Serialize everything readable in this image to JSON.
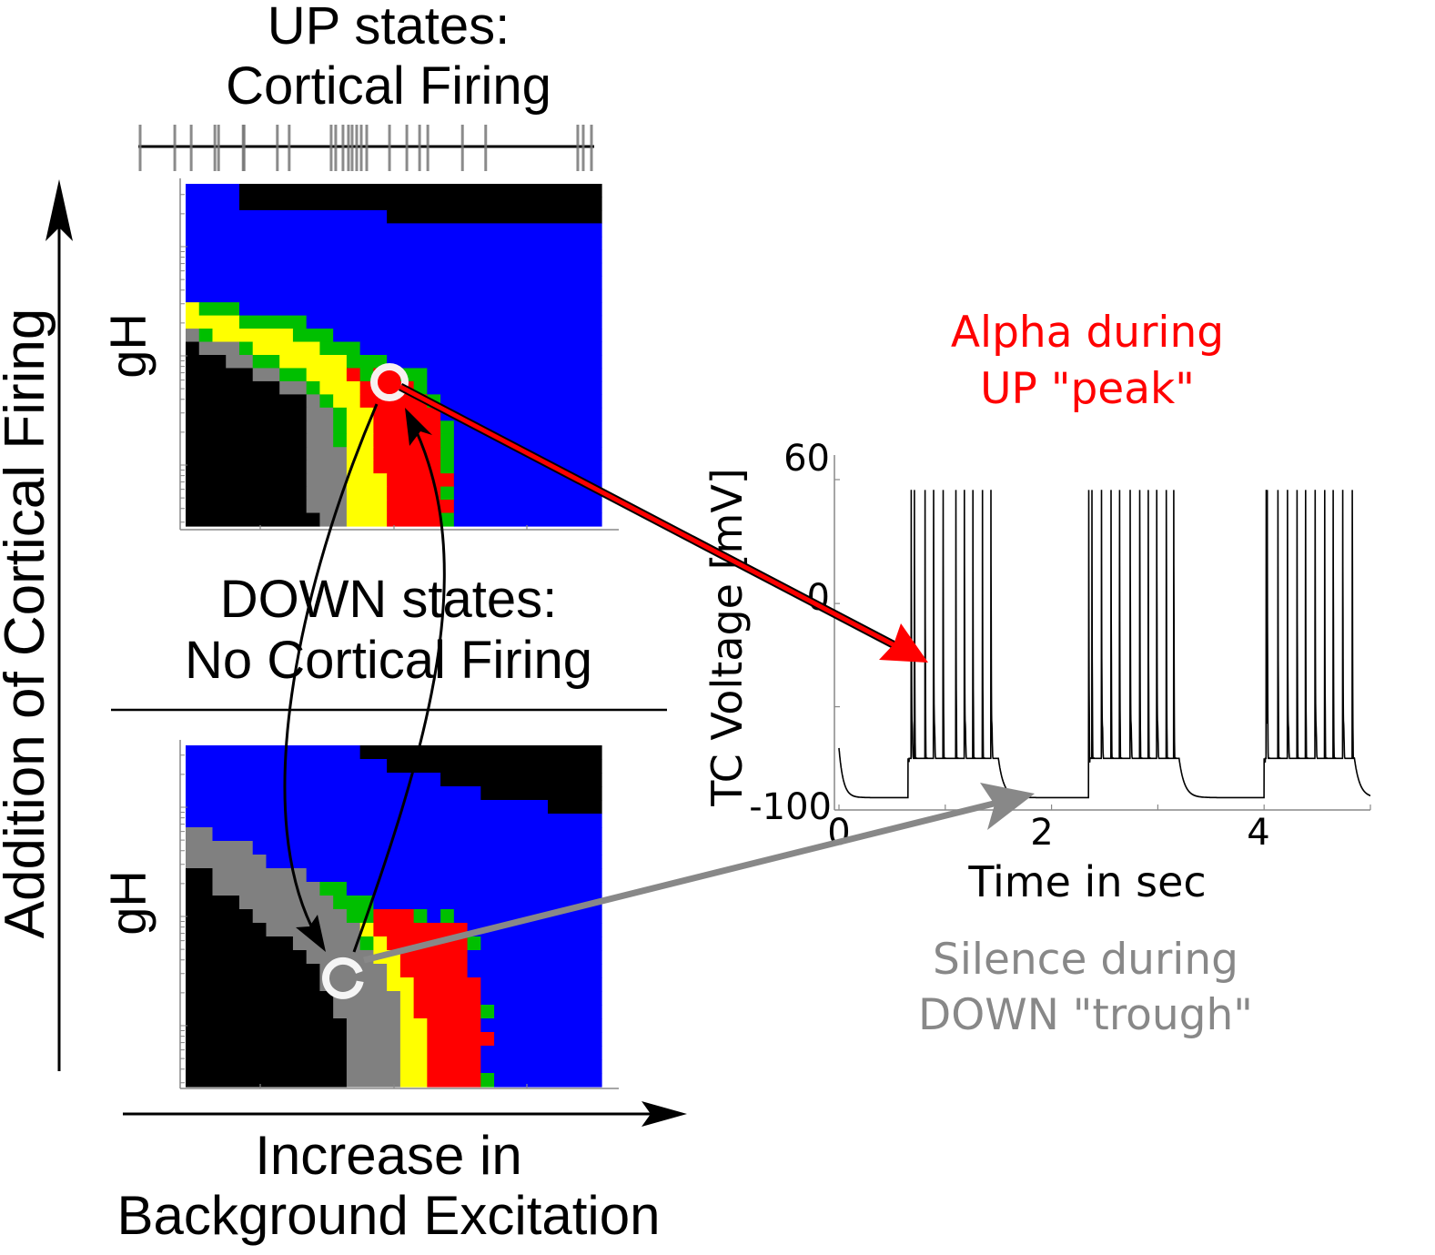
{
  "titles": {
    "up_line1": "UP states:",
    "up_line2": "Cortical Firing",
    "down_line1": "DOWN states:",
    "down_line2": "No Cortical Firing"
  },
  "axes_labels": {
    "vertical_arrow": "Addition of Cortical Firing",
    "horizontal_line1": "Increase in",
    "horizontal_line2": "Background Excitation",
    "heatmap_ylabel": "gH"
  },
  "annotations": {
    "alpha_line1": "Alpha during",
    "alpha_line2": "UP \"peak\"",
    "silence_line1": "Silence during",
    "silence_line2": "DOWN \"trough\""
  },
  "colors": {
    "K": "#000000",
    "B": "#0000ff",
    "G": "#808080",
    "Y": "#ffff00",
    "R": "#ff0000",
    "N": "#00bf00",
    "alpha_text": "#ff0000",
    "silence_text": "#888888",
    "up_arrow": "#ff0000",
    "down_arrow": "#888888"
  },
  "raster": {
    "spike_positions_fraction": [
      0.004,
      0.08,
      0.116,
      0.168,
      0.176,
      0.23,
      0.232,
      0.305,
      0.331,
      0.423,
      0.433,
      0.449,
      0.461,
      0.469,
      0.479,
      0.489,
      0.501,
      0.551,
      0.589,
      0.617,
      0.635,
      0.711,
      0.762,
      0.964,
      0.976,
      0.994
    ]
  },
  "chart_data": [
    {
      "type": "heatmap",
      "panel": "UP states",
      "ylabel": "gH",
      "yscale": "log",
      "rows_top_to_bottom_rle": [
        "B4 K27",
        "B4 K27",
        "B15 K16",
        "B31",
        "B31",
        "B31",
        "B31",
        "B31",
        "B31",
        "Y1 N3 B27",
        "Y4 N5 B22",
        "G1 N1 Y6 N3 B20",
        "K1 G3 N1 Y5 N3 B18",
        "K3 G2 N2 Y5 N3 B16",
        "K5 G2 N2 Y3 R1 N1 R2 N2 B13",
        "K7 G2 N1 Y3 R4 N1 B13",
        "K9 G1 N1 Y2 R5 N1 B12",
        "K9 G2 N1 Y2 R5 B12",
        "K9 G2 N1 Y2 R5 N1 B11",
        "K9 G2 N1 Y2 R5 N1 B11",
        "K9 G3 Y2 R5 N1 B11",
        "K9 G3 Y2 R5 N1 B11",
        "K9 G3 Y3 R5 B11",
        "K9 G3 Y3 R4 N1 B11",
        "K9 G3 Y3 R5 B11",
        "K10 G2 Y3 R4 N1 B11"
      ],
      "marker": "filled-state circle (UP peak)"
    },
    {
      "type": "heatmap",
      "panel": "DOWN states",
      "ylabel": "gH",
      "yscale": "log",
      "rows_top_to_bottom_rle": [
        "B13 K18",
        "B15 K16",
        "B19 K12",
        "B22 K9",
        "B27 K4",
        "B31",
        "G2 B29",
        "G5 B26",
        "G6 B25",
        "K2 G7 B22",
        "K2 G8 N2 B19",
        "K4 G7 N3 B17",
        "K5 G7 N2 R3 N1 B1 N1 B11",
        "K6 G7 Y1 R7 B10",
        "K8 G5 N1 Y1 R6 N1 B9",
        "K9 G5 Y2 R5 B10",
        "K10 G5 Y1 R5 B10",
        "K10 G5 Y2 R5 B9",
        "K11 G5 Y1 R5 B9",
        "K11 G5 Y1 R5 N1 B8",
        "K12 G4 Y2 R4 B9",
        "K12 G4 Y2 R5 B8",
        "K12 G4 Y2 R4 B9",
        "K12 G4 Y2 R4 B9",
        "K12 G4 Y2 R4 N1 B8"
      ],
      "marker": "open circle (DOWN trough)"
    },
    {
      "type": "line",
      "xlabel": "Time in sec",
      "ylabel": "TC Voltage [mV]",
      "xlim": [
        0,
        5
      ],
      "ylim": [
        -100,
        60
      ],
      "xticks": [
        0,
        1,
        2,
        3,
        4,
        5
      ],
      "xtick_labels": {
        "0": "0",
        "2": "2",
        "4": "4"
      },
      "ytick_labels": {
        "top": "60",
        "middle": "0",
        "bottom": "-100"
      },
      "start_value": -70,
      "baseline": -94,
      "burst_plateau": -75,
      "spike_peak": 55,
      "bursts": [
        [
          0.65,
          1.5
        ],
        [
          2.35,
          3.2
        ],
        [
          4.0,
          4.85
        ]
      ],
      "spike_times": [
        0.68,
        0.71,
        0.81,
        0.89,
        0.98,
        1.1,
        1.18,
        1.26,
        1.35,
        1.43,
        2.35,
        2.38,
        2.47,
        2.56,
        2.64,
        2.74,
        2.83,
        2.91,
        2.99,
        3.08,
        3.15,
        4.02,
        4.03,
        4.13,
        4.22,
        4.31,
        4.39,
        4.48,
        4.57,
        4.65,
        4.74,
        4.83
      ]
    }
  ]
}
